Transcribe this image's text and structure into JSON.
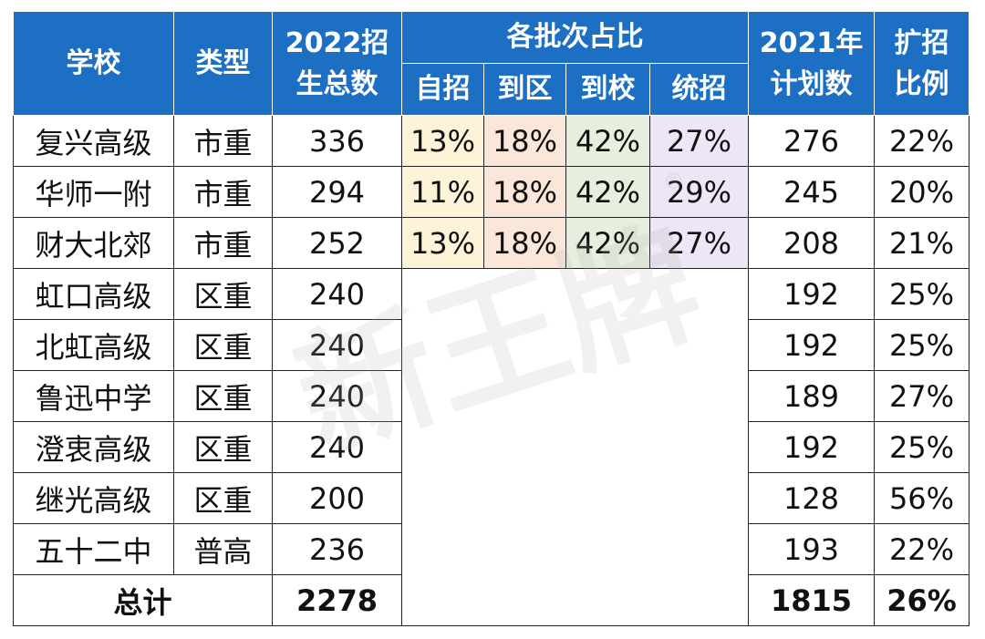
{
  "headers": {
    "school": "学校",
    "type": "类型",
    "enroll_2022_line1": "2022招",
    "enroll_2022_line2": "生总数",
    "batch_group": "各批次占比",
    "batch_zizhao": "自招",
    "batch_daoqu": "到区",
    "batch_daoxiao": "到校",
    "batch_tongzhao": "统招",
    "plan_2021_line1": "2021年",
    "plan_2021_line2": "计划数",
    "expand_line1": "扩招",
    "expand_line2": "比例"
  },
  "rows": [
    {
      "school": "复兴高级",
      "type": "市重",
      "enroll": "336",
      "zizhao": "13%",
      "daoqu": "18%",
      "daoxiao": "42%",
      "tongzhao": "27%",
      "plan": "276",
      "expand": "22%"
    },
    {
      "school": "华师一附",
      "type": "市重",
      "enroll": "294",
      "zizhao": "11%",
      "daoqu": "18%",
      "daoxiao": "42%",
      "tongzhao": "29%",
      "plan": "245",
      "expand": "20%"
    },
    {
      "school": "财大北郊",
      "type": "市重",
      "enroll": "252",
      "zizhao": "13%",
      "daoqu": "18%",
      "daoxiao": "42%",
      "tongzhao": "27%",
      "plan": "208",
      "expand": "21%"
    },
    {
      "school": "虹口高级",
      "type": "区重",
      "enroll": "240",
      "plan": "192",
      "expand": "25%"
    },
    {
      "school": "北虹高级",
      "type": "区重",
      "enroll": "240",
      "plan": "192",
      "expand": "25%"
    },
    {
      "school": "鲁迅中学",
      "type": "区重",
      "enroll": "240",
      "plan": "189",
      "expand": "27%"
    },
    {
      "school": "澄衷高级",
      "type": "区重",
      "enroll": "240",
      "plan": "192",
      "expand": "25%"
    },
    {
      "school": "继光高级",
      "type": "区重",
      "enroll": "200",
      "plan": "128",
      "expand": "56%"
    },
    {
      "school": "五十二中",
      "type": "普高",
      "enroll": "236",
      "plan": "193",
      "expand": "22%"
    }
  ],
  "total": {
    "label": "总计",
    "enroll": "2278",
    "plan": "1815",
    "expand": "26%"
  },
  "watermark": {
    "text": "新王牌",
    "mark": "®"
  },
  "colors": {
    "header_bg": "#1d6fc4",
    "zizhao_bg": "#fdf3d9",
    "daoqu_bg": "#fbe6da",
    "daoxiao_bg": "#e6efde",
    "tongzhao_bg": "#ede6f6"
  }
}
